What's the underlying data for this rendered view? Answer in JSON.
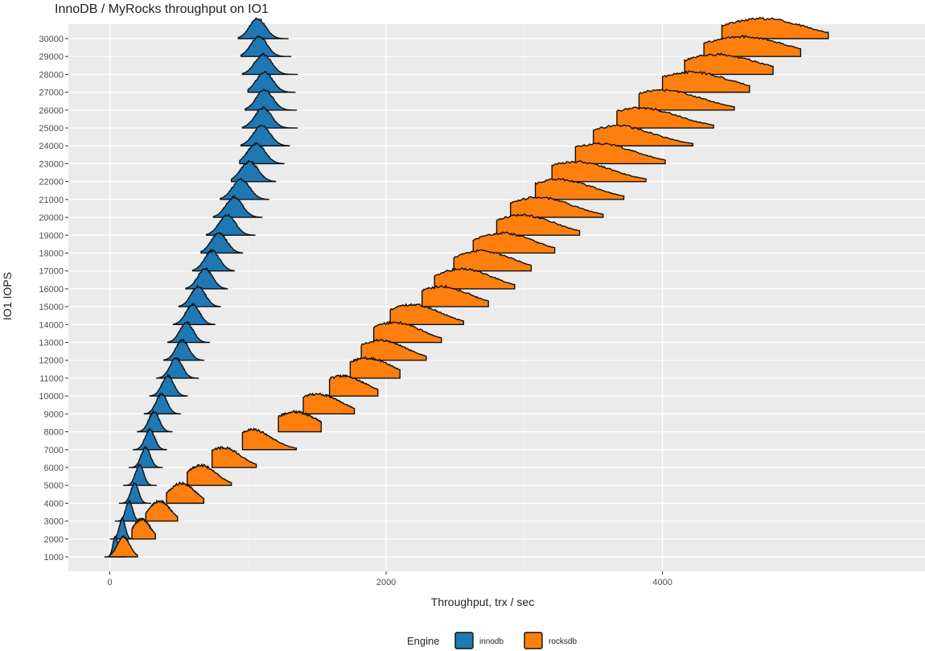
{
  "chart_data": {
    "type": "ridgeline",
    "title": "InnoDB / MyRocks throughput on IO1",
    "xlabel": "Throughput, trx / sec",
    "ylabel": "IO1 IOPS",
    "xlim": [
      -300,
      5900
    ],
    "x_ticks": [
      0,
      2000,
      4000
    ],
    "x_tick_labels": [
      "0",
      "2000",
      "4000"
    ],
    "categories": [
      "1000",
      "2000",
      "3000",
      "4000",
      "5000",
      "6000",
      "7000",
      "8000",
      "9000",
      "10000",
      "11000",
      "12000",
      "13000",
      "14000",
      "15000",
      "16000",
      "17000",
      "18000",
      "19000",
      "20000",
      "21000",
      "22000",
      "23000",
      "24000",
      "25000",
      "26000",
      "27000",
      "28000",
      "29000",
      "30000"
    ],
    "legend": {
      "title": "Engine",
      "position": "bottom"
    },
    "series": [
      {
        "name": "innodb",
        "color": "#1f77b4",
        "center": [
          40,
          90,
          140,
          180,
          215,
          260,
          290,
          320,
          375,
          420,
          480,
          525,
          555,
          600,
          640,
          690,
          740,
          790,
          850,
          900,
          950,
          1010,
          1060,
          1100,
          1110,
          1120,
          1120,
          1110,
          1080,
          1070
        ],
        "spread": [
          18,
          22,
          25,
          28,
          30,
          33,
          35,
          38,
          40,
          42,
          45,
          47,
          48,
          50,
          52,
          53,
          55,
          57,
          59,
          60,
          62,
          63,
          63,
          62,
          60,
          60,
          60,
          60,
          58,
          58
        ],
        "range": [
          [
            -40,
            120
          ],
          [
            0,
            180
          ],
          [
            40,
            240
          ],
          [
            70,
            300
          ],
          [
            100,
            340
          ],
          [
            140,
            380
          ],
          [
            170,
            410
          ],
          [
            200,
            450
          ],
          [
            250,
            510
          ],
          [
            290,
            560
          ],
          [
            340,
            640
          ],
          [
            390,
            680
          ],
          [
            420,
            720
          ],
          [
            460,
            760
          ],
          [
            500,
            800
          ],
          [
            550,
            850
          ],
          [
            600,
            900
          ],
          [
            660,
            960
          ],
          [
            700,
            1050
          ],
          [
            750,
            1100
          ],
          [
            800,
            1150
          ],
          [
            880,
            1200
          ],
          [
            940,
            1260
          ],
          [
            950,
            1300
          ],
          [
            960,
            1360
          ],
          [
            980,
            1350
          ],
          [
            1000,
            1340
          ],
          [
            960,
            1360
          ],
          [
            950,
            1310
          ],
          [
            930,
            1290
          ]
        ]
      },
      {
        "name": "rocksdb",
        "color": "#ff7f0e",
        "center": [
          100,
          230,
          360,
          520,
          660,
          820,
          1030,
          1340,
          1500,
          1680,
          1860,
          1960,
          2060,
          2190,
          2400,
          2550,
          2690,
          2840,
          2980,
          3100,
          3250,
          3370,
          3540,
          3670,
          3840,
          4000,
          4210,
          4400,
          4580,
          4720
        ],
        "spread": [
          45,
          60,
          75,
          95,
          110,
          125,
          140,
          160,
          170,
          175,
          180,
          185,
          195,
          200,
          210,
          215,
          225,
          230,
          240,
          245,
          250,
          255,
          260,
          265,
          270,
          275,
          280,
          290,
          300,
          310
        ],
        "range": [
          [
            0,
            200
          ],
          [
            160,
            330
          ],
          [
            260,
            490
          ],
          [
            410,
            680
          ],
          [
            560,
            880
          ],
          [
            740,
            1060
          ],
          [
            960,
            1350
          ],
          [
            1220,
            1530
          ],
          [
            1400,
            1770
          ],
          [
            1590,
            1940
          ],
          [
            1740,
            2100
          ],
          [
            1820,
            2290
          ],
          [
            1910,
            2400
          ],
          [
            2030,
            2560
          ],
          [
            2260,
            2740
          ],
          [
            2350,
            2930
          ],
          [
            2490,
            3050
          ],
          [
            2630,
            3220
          ],
          [
            2800,
            3400
          ],
          [
            2900,
            3570
          ],
          [
            3080,
            3720
          ],
          [
            3200,
            3880
          ],
          [
            3370,
            4020
          ],
          [
            3500,
            4220
          ],
          [
            3670,
            4370
          ],
          [
            3830,
            4520
          ],
          [
            4000,
            4630
          ],
          [
            4160,
            4800
          ],
          [
            4300,
            5000
          ],
          [
            4430,
            5200
          ]
        ]
      }
    ]
  }
}
